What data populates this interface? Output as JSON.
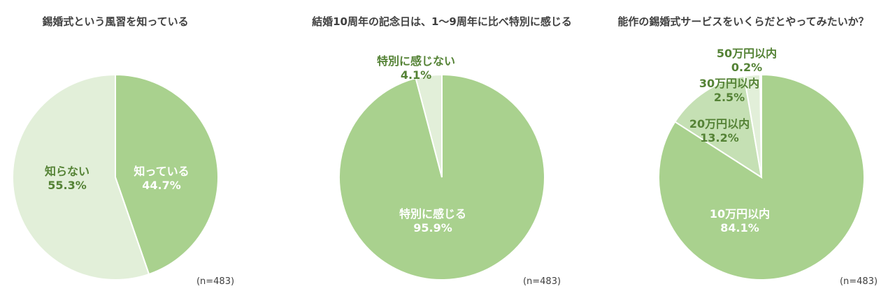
{
  "chart_data": [
    {
      "type": "pie",
      "title": "錫婚式という風習を知っている",
      "note": "(n=483)",
      "slices": [
        {
          "label": "知っている",
          "value": 44.7,
          "display": "44.7%",
          "color": "#a9d18e",
          "text_color": "#ffffff"
        },
        {
          "label": "知らない",
          "value": 55.3,
          "display": "55.3%",
          "color": "#e2efd9",
          "text_color": "#548235"
        }
      ]
    },
    {
      "type": "pie",
      "title": "結婚10周年の記念日は、1～9周年に比べ特別に感じる",
      "note": "(n=483)",
      "slices": [
        {
          "label": "特別に感じる",
          "value": 95.9,
          "display": "95.9%",
          "color": "#a9d18e",
          "text_color": "#ffffff"
        },
        {
          "label": "特別に感じない",
          "value": 4.1,
          "display": "4.1%",
          "color": "#e2efd9",
          "text_color": "#548235"
        }
      ]
    },
    {
      "type": "pie",
      "title": "能作の錫婚式サービスをいくらだとやってみたいか？",
      "note": "(n=483)",
      "slices": [
        {
          "label": "10万円以内",
          "value": 84.1,
          "display": "84.1%",
          "color": "#a9d18e",
          "text_color": "#ffffff"
        },
        {
          "label": "20万円以内",
          "value": 13.2,
          "display": "13.2%",
          "color": "#c5e0b4",
          "text_color": "#548235"
        },
        {
          "label": "30万円以内",
          "value": 2.5,
          "display": "2.5%",
          "color": "#e2efd9",
          "text_color": "#548235"
        },
        {
          "label": "50万円以内",
          "value": 0.2,
          "display": "0.2%",
          "color": "#ffffff",
          "text_color": "#548235"
        }
      ]
    }
  ]
}
